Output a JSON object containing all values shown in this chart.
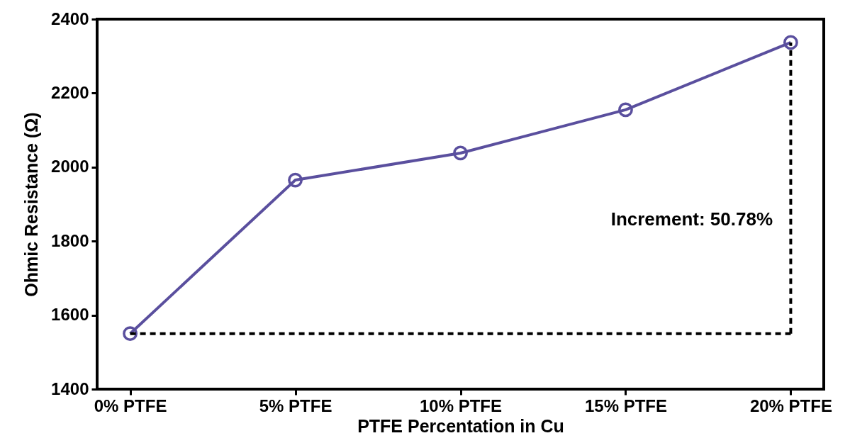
{
  "chart_data": {
    "type": "line",
    "xlabel": "PTFE Percentation in Cu",
    "ylabel": "Ohmic Resistance (Ω)",
    "categories": [
      "0% PTFE",
      "5% PTFE",
      "10% PTFE",
      "15% PTFE",
      "20% PTFE"
    ],
    "series": [
      {
        "color": "#5a4f9e",
        "values": [
          1550,
          1965,
          2038,
          2155,
          2337
        ],
        "line_style": "solid"
      }
    ],
    "ylim": [
      1400,
      2400
    ],
    "yticks": [
      1400,
      1600,
      1800,
      2000,
      2200,
      2400
    ],
    "annotations": [
      "Increment: 50.78%"
    ],
    "marker": "circle"
  }
}
